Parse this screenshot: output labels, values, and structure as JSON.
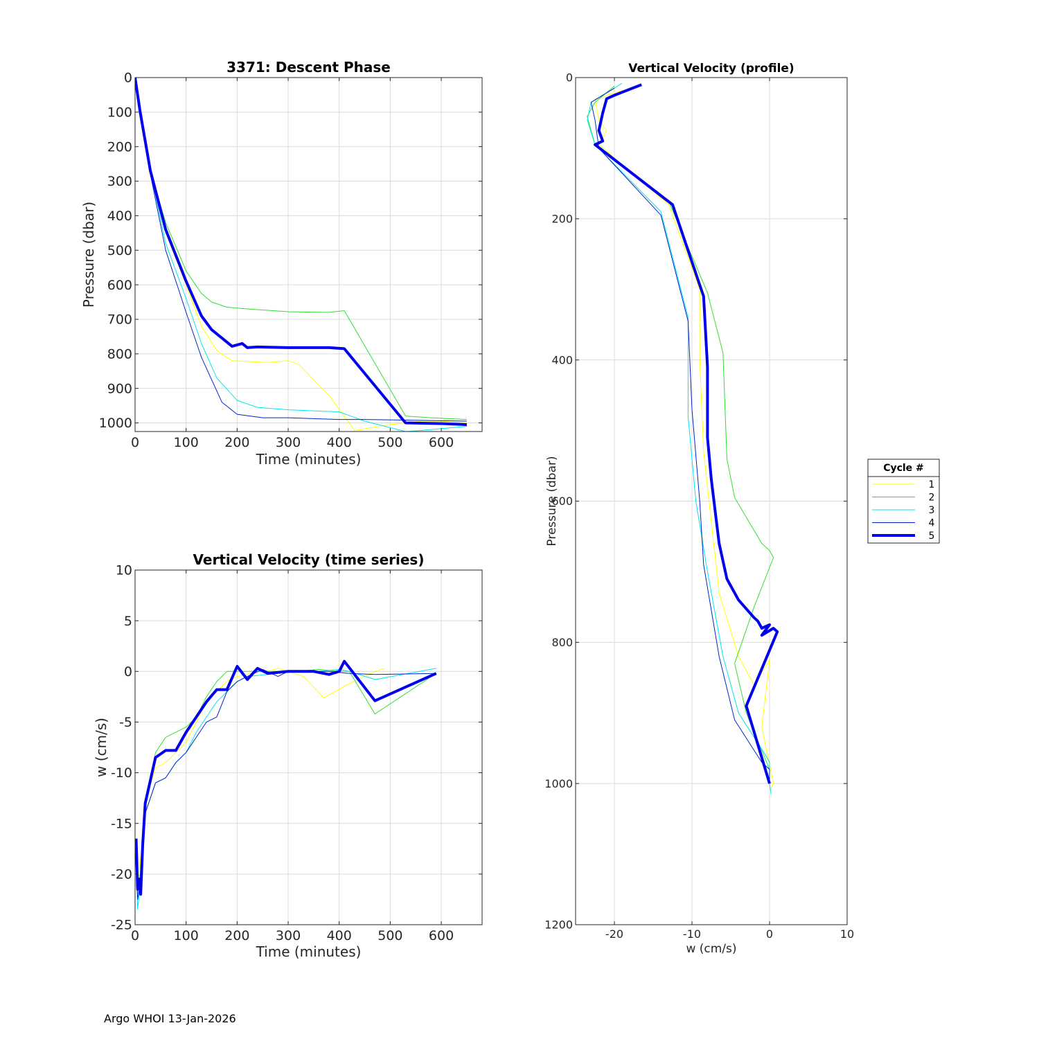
{
  "footer": "Argo WHOI 13-Jan-2026",
  "chart_data": [
    {
      "id": "descent",
      "type": "line",
      "title": "3371: Descent Phase",
      "xlabel": "Time (minutes)",
      "ylabel": "Pressure (dbar)",
      "xlim": [
        0,
        680
      ],
      "ylim": [
        1025,
        0
      ],
      "y_reversed": true,
      "xticks": [
        0,
        100,
        200,
        300,
        400,
        500,
        600
      ],
      "yticks": [
        0,
        100,
        200,
        300,
        400,
        500,
        600,
        700,
        800,
        900,
        1000
      ],
      "grid": true,
      "series": [
        {
          "name": "1",
          "color": "#ffff00",
          "width": 1,
          "x": [
            0,
            10,
            30,
            60,
            100,
            130,
            160,
            190,
            220,
            260,
            300,
            320,
            380,
            430,
            500,
            560,
            600,
            650
          ],
          "y": [
            0,
            100,
            270,
            450,
            600,
            720,
            790,
            820,
            822,
            825,
            820,
            830,
            920,
            1022,
            1005,
            995,
            995,
            1000
          ]
        },
        {
          "name": "2",
          "color": "#33dd33",
          "width": 1,
          "x": [
            0,
            10,
            30,
            60,
            100,
            130,
            150,
            180,
            220,
            300,
            380,
            410,
            530,
            580,
            650
          ],
          "y": [
            0,
            100,
            270,
            420,
            560,
            625,
            650,
            665,
            670,
            678,
            680,
            675,
            980,
            985,
            990
          ]
        },
        {
          "name": "3",
          "color": "#00e5ee",
          "width": 1,
          "x": [
            0,
            10,
            30,
            60,
            100,
            130,
            160,
            200,
            240,
            300,
            350,
            400,
            450,
            530,
            560,
            650
          ],
          "y": [
            0,
            100,
            270,
            480,
            640,
            770,
            870,
            935,
            955,
            962,
            965,
            968,
            995,
            1025,
            1022,
            1010
          ]
        },
        {
          "name": "4",
          "color": "#0022cc",
          "width": 1,
          "x": [
            0,
            10,
            30,
            60,
            100,
            130,
            170,
            200,
            250,
            300,
            400,
            450,
            530,
            650
          ],
          "y": [
            0,
            100,
            280,
            500,
            680,
            810,
            940,
            975,
            985,
            985,
            990,
            990,
            992,
            995
          ]
        },
        {
          "name": "5",
          "color": "#0000ee",
          "width": 4,
          "x": [
            0,
            10,
            30,
            60,
            100,
            130,
            150,
            190,
            210,
            220,
            240,
            300,
            350,
            380,
            410,
            530,
            600,
            650
          ],
          "y": [
            0,
            100,
            270,
            440,
            590,
            690,
            730,
            778,
            770,
            782,
            780,
            782,
            782,
            782,
            785,
            1000,
            1002,
            1005
          ]
        }
      ]
    },
    {
      "id": "velocity_time",
      "type": "line",
      "title": "Vertical Velocity (time series)",
      "xlabel": "Time (minutes)",
      "ylabel": "w (cm/s)",
      "xlim": [
        0,
        680
      ],
      "ylim": [
        -25,
        10
      ],
      "xticks": [
        0,
        100,
        200,
        300,
        400,
        500,
        600
      ],
      "yticks": [
        -25,
        -20,
        -15,
        -10,
        -5,
        0,
        5,
        10
      ],
      "grid": true,
      "series": [
        {
          "name": "1",
          "color": "#ffff00",
          "width": 1,
          "x": [
            2,
            5,
            10,
            15,
            20,
            40,
            60,
            80,
            100,
            120,
            140,
            160,
            180,
            200,
            220,
            240,
            260,
            280,
            300,
            330,
            370,
            420,
            470,
            490
          ],
          "y": [
            -17,
            -22,
            -19,
            -16,
            -13,
            -9.5,
            -9,
            -8,
            -7,
            -5,
            -3,
            -2,
            -1,
            -0.5,
            -0.3,
            0,
            0,
            0.3,
            0,
            -0.5,
            -2.6,
            -1.2,
            0,
            0.3
          ]
        },
        {
          "name": "2",
          "color": "#33dd33",
          "width": 1,
          "x": [
            2,
            5,
            10,
            15,
            20,
            40,
            60,
            80,
            100,
            120,
            140,
            160,
            180,
            200,
            240,
            280,
            320,
            360,
            400,
            420,
            470,
            590
          ],
          "y": [
            -17,
            -22,
            -20,
            -16,
            -13,
            -8,
            -6.5,
            -6,
            -5.5,
            -4.5,
            -2.5,
            -1,
            0,
            0,
            0,
            0,
            0,
            0.2,
            0,
            0,
            -4.2,
            -0.2
          ]
        },
        {
          "name": "3",
          "color": "#00e5ee",
          "width": 1,
          "x": [
            2,
            5,
            10,
            15,
            20,
            40,
            60,
            80,
            100,
            120,
            140,
            160,
            180,
            200,
            220,
            260,
            300,
            360,
            400,
            420,
            470,
            590
          ],
          "y": [
            -18,
            -23.5,
            -21,
            -17,
            -14,
            -11,
            -10.5,
            -9,
            -8,
            -6,
            -4.5,
            -3,
            -2,
            -1,
            -0.5,
            -0.3,
            0,
            0,
            0.2,
            0,
            -0.8,
            0.3
          ]
        },
        {
          "name": "4",
          "color": "#0022cc",
          "width": 1,
          "x": [
            2,
            5,
            10,
            15,
            20,
            40,
            60,
            80,
            100,
            120,
            140,
            160,
            180,
            200,
            220,
            250,
            280,
            300,
            340,
            380,
            420,
            470,
            590
          ],
          "y": [
            -18,
            -22.5,
            -21,
            -17,
            -14,
            -11,
            -10.5,
            -9,
            -8,
            -6.5,
            -5,
            -4.5,
            -2,
            -1,
            -0.5,
            0.2,
            -0.5,
            0,
            0,
            0,
            -0.2,
            -0.3,
            -0.2
          ]
        },
        {
          "name": "5",
          "color": "#0000ee",
          "width": 4,
          "x": [
            2,
            5,
            8,
            11,
            15,
            20,
            40,
            60,
            80,
            100,
            120,
            140,
            160,
            180,
            200,
            220,
            240,
            260,
            300,
            350,
            380,
            400,
            410,
            470,
            590
          ],
          "y": [
            -16.5,
            -21.5,
            -20.5,
            -22,
            -17,
            -13,
            -8.5,
            -7.8,
            -7.8,
            -6,
            -4.5,
            -3,
            -1.8,
            -1.8,
            0.5,
            -0.8,
            0.3,
            -0.2,
            0,
            0,
            -0.3,
            0,
            1,
            -2.9,
            -0.2
          ]
        }
      ]
    },
    {
      "id": "velocity_profile",
      "type": "line",
      "title": "Vertical Velocity (profile)",
      "xlabel": "w (cm/s)",
      "ylabel": "Pressure (dbar)",
      "xlim": [
        -25,
        10
      ],
      "ylim": [
        1200,
        0
      ],
      "y_reversed": true,
      "xticks": [
        -20,
        -10,
        0,
        10
      ],
      "yticks": [
        0,
        200,
        400,
        600,
        800,
        1000,
        1200
      ],
      "grid": true,
      "legend": {
        "title": "Cycle #",
        "placement": "outside-right"
      },
      "series": [
        {
          "name": "1",
          "color": "#ffff00",
          "width": 1,
          "w": [
            -17,
            -22.5,
            -22,
            -21,
            -22,
            -13,
            -9,
            -9,
            -8.5,
            -7.5,
            -6.5,
            -4,
            -2,
            0,
            -1,
            0.5,
            0
          ],
          "p": [
            12,
            30,
            60,
            75,
            95,
            180,
            300,
            400,
            530,
            630,
            730,
            820,
            860,
            825,
            920,
            1000,
            1010
          ]
        },
        {
          "name": "2",
          "color": "#33dd33",
          "width": 1,
          "w": [
            -20,
            -22.5,
            -23.5,
            -22.5,
            -13,
            -8,
            -6,
            -5.5,
            -4.5,
            -1,
            0,
            0.5,
            -2,
            -4.5,
            -3,
            0
          ],
          "p": [
            12,
            35,
            55,
            95,
            175,
            305,
            390,
            540,
            595,
            660,
            670,
            680,
            750,
            830,
            900,
            980
          ]
        },
        {
          "name": "3",
          "color": "#00e5ee",
          "width": 1,
          "w": [
            -19,
            -23,
            -23.5,
            -22.5,
            -14,
            -10.5,
            -10.5,
            -9.5,
            -8,
            -6,
            -4,
            -0.5,
            0,
            0,
            0.2
          ],
          "p": [
            8,
            35,
            60,
            95,
            190,
            340,
            480,
            600,
            700,
            820,
            900,
            960,
            970,
            1000,
            1015
          ]
        },
        {
          "name": "4",
          "color": "#0022cc",
          "width": 1,
          "w": [
            -20,
            -23,
            -22.5,
            -22,
            -14,
            -10.5,
            -10,
            -9,
            -8.5,
            -6.5,
            -4.5,
            -1,
            0,
            0
          ],
          "p": [
            15,
            35,
            60,
            100,
            195,
            345,
            470,
            600,
            690,
            820,
            910,
            970,
            980,
            1000
          ]
        },
        {
          "name": "5",
          "color": "#0000ee",
          "width": 4,
          "w": [
            -16.5,
            -20,
            -21,
            -21.5,
            -22,
            -21.5,
            -22.5,
            -12.5,
            -8.5,
            -8,
            -8,
            -7.5,
            -6.5,
            -5.5,
            -4,
            -2,
            -1.5,
            -1,
            0,
            -1,
            0.5,
            1,
            -3,
            0
          ],
          "p": [
            10,
            25,
            30,
            50,
            75,
            90,
            95,
            180,
            310,
            410,
            510,
            570,
            660,
            710,
            740,
            765,
            770,
            780,
            775,
            790,
            780,
            785,
            890,
            1000
          ]
        }
      ]
    }
  ]
}
